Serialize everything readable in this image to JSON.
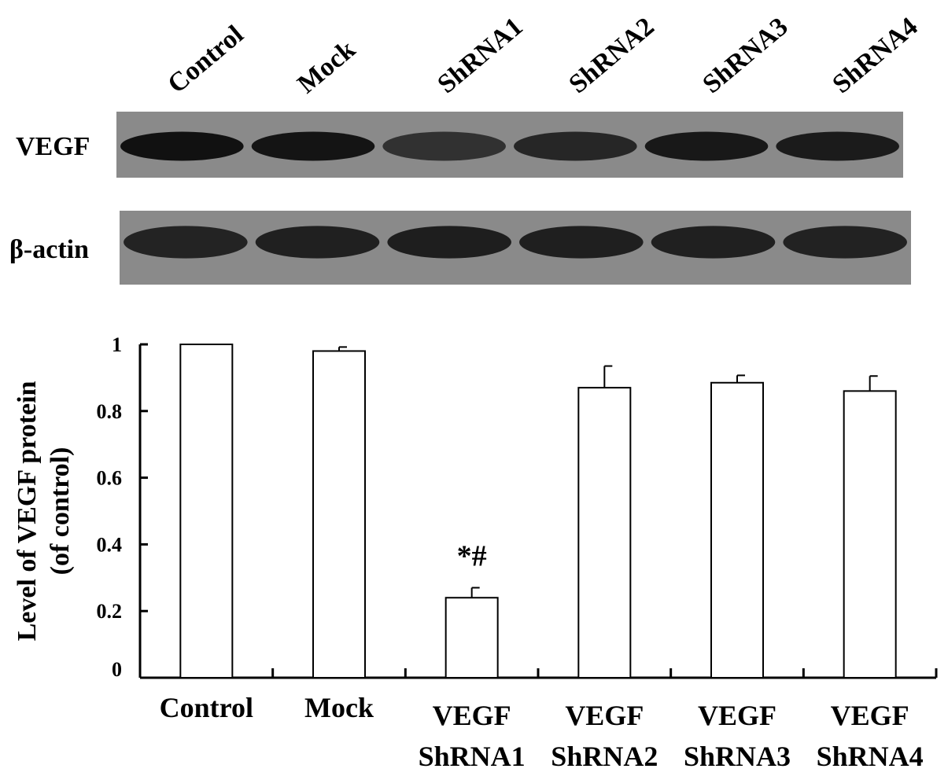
{
  "blot": {
    "lane_labels": [
      "Control",
      "Mock",
      "ShRNA1",
      "ShRNA2",
      "ShRNA3",
      "ShRNA4"
    ],
    "rows": [
      {
        "label": "VEGF",
        "band_intensity": [
          0.95,
          0.93,
          0.72,
          0.8,
          0.9,
          0.88
        ]
      },
      {
        "label": "β-actin",
        "band_intensity": [
          0.82,
          0.84,
          0.86,
          0.85,
          0.84,
          0.83
        ]
      }
    ]
  },
  "chart_data": {
    "type": "bar",
    "categories": [
      [
        "Control"
      ],
      [
        "Mock"
      ],
      [
        "VEGF",
        "ShRNA1"
      ],
      [
        "VEGF",
        "ShRNA2"
      ],
      [
        "VEGF",
        "ShRNA3"
      ],
      [
        "VEGF",
        "ShRNA4"
      ]
    ],
    "values": [
      1.0,
      0.98,
      0.24,
      0.87,
      0.885,
      0.86
    ],
    "errors": [
      0.0,
      0.012,
      0.03,
      0.065,
      0.022,
      0.045
    ],
    "ylabel_lines": [
      "Level of VEGF protein",
      "(of control)"
    ],
    "yticks": [
      "0",
      "0.2",
      "0.4",
      "0.6",
      "0.8",
      "1"
    ],
    "ylim": [
      0,
      1.0
    ],
    "annotation": {
      "text": "*#",
      "category_index": 2
    },
    "grid": false,
    "bar_fill": "#ffffff",
    "bar_stroke": "#000000"
  }
}
